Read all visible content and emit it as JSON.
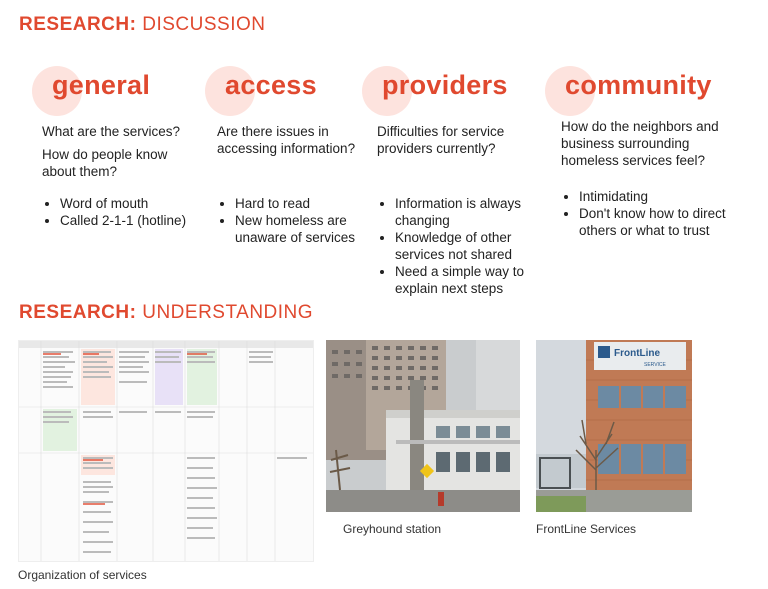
{
  "heading1": {
    "bold": "RESEARCH:",
    "light": "DISCUSSION"
  },
  "heading2": {
    "bold": "RESEARCH:",
    "light": "UNDERSTANDING"
  },
  "columns": [
    {
      "title": "general",
      "questions": [
        "What are the services?",
        "How do people know about them?"
      ],
      "bullets": [
        "Word of mouth",
        "Called 2-1-1 (hotline)"
      ]
    },
    {
      "title": "access",
      "questions": [
        "Are there issues in accessing information?"
      ],
      "bullets": [
        "Hard to read",
        "New homeless are unaware of services"
      ]
    },
    {
      "title": "providers",
      "questions": [
        "Difficulties for service providers currently?"
      ],
      "bullets": [
        "Information is always changing",
        "Knowledge of other services not shared",
        "Need a simple way to explain next steps"
      ]
    },
    {
      "title": "community",
      "questions": [
        "How do the neighbors and business surrounding homeless services feel?"
      ],
      "bullets": [
        "Intimidating",
        "Don't know how to direct others or what to trust"
      ]
    }
  ],
  "captions": {
    "spreadsheet": "Organization of services",
    "photo1": "Greyhound station",
    "photo2": "FrontLine Services"
  },
  "sign": {
    "name": "FrontLine",
    "sub": "SERVICE"
  },
  "colors": {
    "accent": "#e0492f",
    "circle": "#fde3de"
  }
}
